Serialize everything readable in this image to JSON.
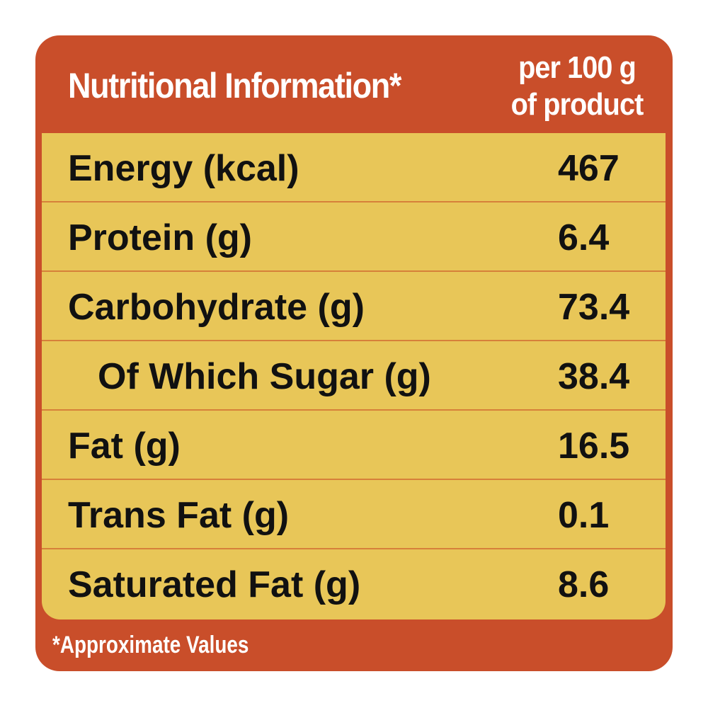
{
  "header": {
    "title": "Nutritional Information*",
    "per_line1": "per 100 g",
    "per_line2": "of product"
  },
  "rows": [
    {
      "label": "Energy (kcal)",
      "value": "467"
    },
    {
      "label": "Protein (g)",
      "value": "6.4"
    },
    {
      "label": "Carbohydrate (g)",
      "value": "73.4"
    },
    {
      "label": "Of Which Sugar (g)",
      "value": "38.4"
    },
    {
      "label": "Fat (g)",
      "value": "16.5"
    },
    {
      "label": "Trans Fat (g)",
      "value": "0.1"
    },
    {
      "label": "Saturated Fat (g)",
      "value": "8.6"
    }
  ],
  "footnote": "*Approximate Values",
  "colors": {
    "frame": "#C94E2A",
    "panel": "#E8C658",
    "divider": "#D6803A"
  }
}
